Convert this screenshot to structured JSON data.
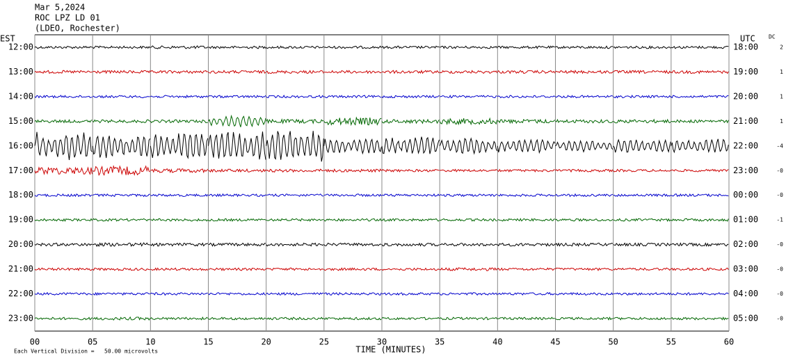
{
  "chart_data": {
    "type": "helicorder",
    "title_lines": [
      "Mar 5,2024",
      "ROC LPZ LD 01",
      "(LDEO, Rochester)"
    ],
    "left_axis_title": "EST",
    "right_axis_title": "UTC",
    "offset_title": "DC",
    "xlabel": "TIME (MINUTES)",
    "footer": "Each Vertical Division =   50.00 microvolts",
    "xlim": [
      0,
      60
    ],
    "xticks": [
      {
        "value": 0,
        "label": "00"
      },
      {
        "value": 5,
        "label": "05"
      },
      10,
      15,
      20,
      25,
      30,
      35,
      40,
      45,
      50,
      55,
      60
    ],
    "grid": true,
    "series": [
      {
        "name": "12:00",
        "utc": "18:00",
        "dc": "2",
        "color": "#000000",
        "values": [
          0.05,
          0.05,
          0.06,
          0.05,
          0.05,
          0.05,
          0.05,
          0.05,
          0.05,
          0.05,
          0.05,
          0.05
        ]
      },
      {
        "name": "13:00",
        "utc": "19:00",
        "dc": "1",
        "color": "#cc0000",
        "values": [
          0.06,
          0.06,
          0.06,
          0.06,
          0.06,
          0.06,
          0.06,
          0.06,
          0.06,
          0.06,
          0.06,
          0.06
        ]
      },
      {
        "name": "14:00",
        "utc": "20:00",
        "dc": "1",
        "color": "#0000cc",
        "values": [
          0.05,
          0.05,
          0.05,
          0.05,
          0.05,
          0.05,
          0.05,
          0.05,
          0.05,
          0.05,
          0.05,
          0.05
        ]
      },
      {
        "name": "15:00",
        "utc": "21:00",
        "dc": "1",
        "color": "#006600",
        "values": [
          0.06,
          0.06,
          0.06,
          0.25,
          0.08,
          0.15,
          0.08,
          0.12,
          0.08,
          0.07,
          0.07,
          0.06
        ]
      },
      {
        "name": "16:00",
        "utc": "22:00",
        "dc": "-4",
        "color": "#000000",
        "values": [
          0.6,
          0.5,
          0.6,
          0.65,
          0.7,
          0.35,
          0.4,
          0.35,
          0.3,
          0.25,
          0.3,
          0.3
        ]
      },
      {
        "name": "17:00",
        "utc": "23:00",
        "dc": "-0",
        "color": "#cc0000",
        "values": [
          0.15,
          0.18,
          0.08,
          0.06,
          0.06,
          0.06,
          0.05,
          0.05,
          0.05,
          0.05,
          0.05,
          0.05
        ]
      },
      {
        "name": "18:00",
        "utc": "00:00",
        "dc": "-0",
        "color": "#0000cc",
        "values": [
          0.05,
          0.05,
          0.05,
          0.05,
          0.05,
          0.05,
          0.05,
          0.05,
          0.05,
          0.05,
          0.05,
          0.05
        ]
      },
      {
        "name": "19:00",
        "utc": "01:00",
        "dc": "-1",
        "color": "#006600",
        "values": [
          0.05,
          0.05,
          0.05,
          0.05,
          0.05,
          0.05,
          0.05,
          0.05,
          0.05,
          0.05,
          0.05,
          0.05
        ]
      },
      {
        "name": "20:00",
        "utc": "02:00",
        "dc": "-0",
        "color": "#000000",
        "values": [
          0.06,
          0.07,
          0.06,
          0.06,
          0.06,
          0.06,
          0.06,
          0.06,
          0.06,
          0.06,
          0.06,
          0.06
        ]
      },
      {
        "name": "21:00",
        "utc": "03:00",
        "dc": "-0",
        "color": "#cc0000",
        "values": [
          0.05,
          0.05,
          0.05,
          0.05,
          0.05,
          0.05,
          0.05,
          0.06,
          0.05,
          0.05,
          0.05,
          0.05
        ]
      },
      {
        "name": "22:00",
        "utc": "04:00",
        "dc": "-0",
        "color": "#0000cc",
        "values": [
          0.05,
          0.05,
          0.05,
          0.05,
          0.05,
          0.05,
          0.05,
          0.05,
          0.05,
          0.05,
          0.05,
          0.05
        ]
      },
      {
        "name": "23:00",
        "utc": "05:00",
        "dc": "-0",
        "color": "#006600",
        "values": [
          0.05,
          0.06,
          0.05,
          0.05,
          0.05,
          0.05,
          0.05,
          0.05,
          0.05,
          0.05,
          0.05,
          0.05
        ]
      }
    ]
  }
}
